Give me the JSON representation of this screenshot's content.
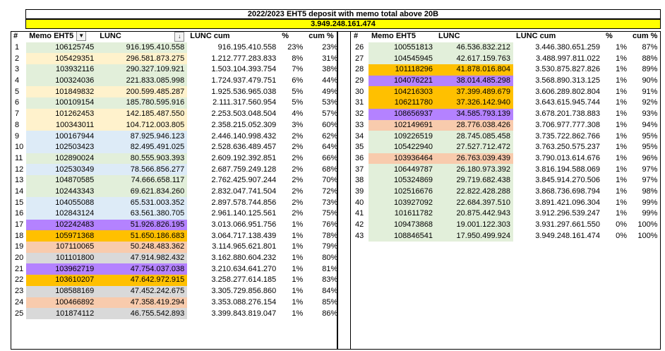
{
  "title": "2022/2023 EHT5 deposit with memo total above 20B",
  "total": "3.949.248.161.474",
  "headers": {
    "idx": "#",
    "memo": "Memo EHT5",
    "lunc": "LUNC",
    "cum": "LUNC cum",
    "pct": "%",
    "cumpct": "cum %"
  },
  "icons": {
    "memo_filter": "dropdown-arrow-icon",
    "lunc_filter": "sort-descending-icon"
  },
  "colors": {
    "green": "#e2efda",
    "cream": "#fff2cc",
    "blue": "#ddebf7",
    "purple": "#b482ff",
    "orange": "#ffc000",
    "salmon": "#f8cbad",
    "gray": "#d9d9d9",
    "banner_yellow": "#ffff00"
  },
  "left_rows": [
    {
      "n": "1",
      "memo": "106125745",
      "lunc": "916.195.410.558",
      "cum": "916.195.410.558",
      "pct": "23%",
      "cumpct": "23%",
      "color": "green"
    },
    {
      "n": "2",
      "memo": "105429351",
      "lunc": "296.581.873.275",
      "cum": "1.212.777.283.833",
      "pct": "8%",
      "cumpct": "31%",
      "color": "cream"
    },
    {
      "n": "3",
      "memo": "103932116",
      "lunc": "290.327.109.921",
      "cum": "1.503.104.393.754",
      "pct": "7%",
      "cumpct": "38%",
      "color": "green"
    },
    {
      "n": "4",
      "memo": "100324036",
      "lunc": "221.833.085.998",
      "cum": "1.724.937.479.751",
      "pct": "6%",
      "cumpct": "44%",
      "color": "green"
    },
    {
      "n": "5",
      "memo": "101849832",
      "lunc": "200.599.485.287",
      "cum": "1.925.536.965.038",
      "pct": "5%",
      "cumpct": "49%",
      "color": "cream"
    },
    {
      "n": "6",
      "memo": "100109154",
      "lunc": "185.780.595.916",
      "cum": "2.111.317.560.954",
      "pct": "5%",
      "cumpct": "53%",
      "color": "green"
    },
    {
      "n": "7",
      "memo": "101262453",
      "lunc": "142.185.487.550",
      "cum": "2.253.503.048.504",
      "pct": "4%",
      "cumpct": "57%",
      "color": "cream"
    },
    {
      "n": "8",
      "memo": "100343011",
      "lunc": "104.712.003.805",
      "cum": "2.358.215.052.309",
      "pct": "3%",
      "cumpct": "60%",
      "color": "cream"
    },
    {
      "n": "9",
      "memo": "100167944",
      "lunc": "87.925.946.123",
      "cum": "2.446.140.998.432",
      "pct": "2%",
      "cumpct": "62%",
      "color": "blue"
    },
    {
      "n": "10",
      "memo": "102503423",
      "lunc": "82.495.491.025",
      "cum": "2.528.636.489.457",
      "pct": "2%",
      "cumpct": "64%",
      "color": "blue"
    },
    {
      "n": "11",
      "memo": "102890024",
      "lunc": "80.555.903.393",
      "cum": "2.609.192.392.851",
      "pct": "2%",
      "cumpct": "66%",
      "color": "green"
    },
    {
      "n": "12",
      "memo": "102530349",
      "lunc": "78.566.856.277",
      "cum": "2.687.759.249.128",
      "pct": "2%",
      "cumpct": "68%",
      "color": "blue"
    },
    {
      "n": "13",
      "memo": "104870585",
      "lunc": "74.666.658.117",
      "cum": "2.762.425.907.244",
      "pct": "2%",
      "cumpct": "70%",
      "color": "green"
    },
    {
      "n": "14",
      "memo": "102443343",
      "lunc": "69.621.834.260",
      "cum": "2.832.047.741.504",
      "pct": "2%",
      "cumpct": "72%",
      "color": "green"
    },
    {
      "n": "15",
      "memo": "104055088",
      "lunc": "65.531.003.352",
      "cum": "2.897.578.744.856",
      "pct": "2%",
      "cumpct": "73%",
      "color": "blue"
    },
    {
      "n": "16",
      "memo": "102843124",
      "lunc": "63.561.380.705",
      "cum": "2.961.140.125.561",
      "pct": "2%",
      "cumpct": "75%",
      "color": "blue"
    },
    {
      "n": "17",
      "memo": "102242483",
      "lunc": "51.926.826.195",
      "cum": "3.013.066.951.756",
      "pct": "1%",
      "cumpct": "76%",
      "color": "purple"
    },
    {
      "n": "18",
      "memo": "105971368",
      "lunc": "51.650.186.683",
      "cum": "3.064.717.138.439",
      "pct": "1%",
      "cumpct": "78%",
      "color": "orange"
    },
    {
      "n": "19",
      "memo": "107110065",
      "lunc": "50.248.483.362",
      "cum": "3.114.965.621.801",
      "pct": "1%",
      "cumpct": "79%",
      "color": "salmon"
    },
    {
      "n": "20",
      "memo": "101101800",
      "lunc": "47.914.982.432",
      "cum": "3.162.880.604.232",
      "pct": "1%",
      "cumpct": "80%",
      "color": "gray"
    },
    {
      "n": "21",
      "memo": "103962719",
      "lunc": "47.754.037.038",
      "cum": "3.210.634.641.270",
      "pct": "1%",
      "cumpct": "81%",
      "color": "purple"
    },
    {
      "n": "22",
      "memo": "103610207",
      "lunc": "47.642.972.915",
      "cum": "3.258.277.614.185",
      "pct": "1%",
      "cumpct": "83%",
      "color": "orange"
    },
    {
      "n": "23",
      "memo": "108588169",
      "lunc": "47.452.242.675",
      "cum": "3.305.729.856.860",
      "pct": "1%",
      "cumpct": "84%",
      "color": "gray"
    },
    {
      "n": "24",
      "memo": "100466892",
      "lunc": "47.358.419.294",
      "cum": "3.353.088.276.154",
      "pct": "1%",
      "cumpct": "85%",
      "color": "salmon"
    },
    {
      "n": "25",
      "memo": "101874112",
      "lunc": "46.755.542.893",
      "cum": "3.399.843.819.047",
      "pct": "1%",
      "cumpct": "86%",
      "color": "gray"
    }
  ],
  "right_rows": [
    {
      "n": "26",
      "memo": "100551813",
      "lunc": "46.536.832.212",
      "cum": "3.446.380.651.259",
      "pct": "1%",
      "cumpct": "87%",
      "color": "green"
    },
    {
      "n": "27",
      "memo": "104545945",
      "lunc": "42.617.159.763",
      "cum": "3.488.997.811.022",
      "pct": "1%",
      "cumpct": "88%",
      "color": "green"
    },
    {
      "n": "28",
      "memo": "101118296",
      "lunc": "41.878.016.804",
      "cum": "3.530.875.827.826",
      "pct": "1%",
      "cumpct": "89%",
      "color": "orange"
    },
    {
      "n": "29",
      "memo": "104076221",
      "lunc": "38.014.485.298",
      "cum": "3.568.890.313.125",
      "pct": "1%",
      "cumpct": "90%",
      "color": "purple"
    },
    {
      "n": "30",
      "memo": "104216303",
      "lunc": "37.399.489.679",
      "cum": "3.606.289.802.804",
      "pct": "1%",
      "cumpct": "91%",
      "color": "orange"
    },
    {
      "n": "31",
      "memo": "106211780",
      "lunc": "37.326.142.940",
      "cum": "3.643.615.945.744",
      "pct": "1%",
      "cumpct": "92%",
      "color": "orange"
    },
    {
      "n": "32",
      "memo": "108656937",
      "lunc": "34.585.793.139",
      "cum": "3.678.201.738.883",
      "pct": "1%",
      "cumpct": "93%",
      "color": "purple"
    },
    {
      "n": "33",
      "memo": "102149691",
      "lunc": "28.776.038.426",
      "cum": "3.706.977.777.308",
      "pct": "1%",
      "cumpct": "94%",
      "color": "salmon"
    },
    {
      "n": "34",
      "memo": "109226519",
      "lunc": "28.745.085.458",
      "cum": "3.735.722.862.766",
      "pct": "1%",
      "cumpct": "95%",
      "color": "green"
    },
    {
      "n": "35",
      "memo": "105422940",
      "lunc": "27.527.712.472",
      "cum": "3.763.250.575.237",
      "pct": "1%",
      "cumpct": "95%",
      "color": "green"
    },
    {
      "n": "36",
      "memo": "103936464",
      "lunc": "26.763.039.439",
      "cum": "3.790.013.614.676",
      "pct": "1%",
      "cumpct": "96%",
      "color": "salmon"
    },
    {
      "n": "37",
      "memo": "106449787",
      "lunc": "26.180.973.392",
      "cum": "3.816.194.588.069",
      "pct": "1%",
      "cumpct": "97%",
      "color": "green"
    },
    {
      "n": "38",
      "memo": "105324869",
      "lunc": "29.719.682.438",
      "cum": "3.845.914.270.506",
      "pct": "1%",
      "cumpct": "97%",
      "color": "green"
    },
    {
      "n": "39",
      "memo": "102516676",
      "lunc": "22.822.428.288",
      "cum": "3.868.736.698.794",
      "pct": "1%",
      "cumpct": "98%",
      "color": "green"
    },
    {
      "n": "40",
      "memo": "103927092",
      "lunc": "22.684.397.510",
      "cum": "3.891.421.096.304",
      "pct": "1%",
      "cumpct": "99%",
      "color": "green"
    },
    {
      "n": "41",
      "memo": "101611782",
      "lunc": "20.875.442.943",
      "cum": "3.912.296.539.247",
      "pct": "1%",
      "cumpct": "99%",
      "color": "green"
    },
    {
      "n": "42",
      "memo": "109473868",
      "lunc": "19.001.122.303",
      "cum": "3.931.297.661.550",
      "pct": "0%",
      "cumpct": "100%",
      "color": "green"
    },
    {
      "n": "43",
      "memo": "108846541",
      "lunc": "17.950.499.924",
      "cum": "3.949.248.161.474",
      "pct": "0%",
      "cumpct": "100%",
      "color": "green"
    }
  ]
}
